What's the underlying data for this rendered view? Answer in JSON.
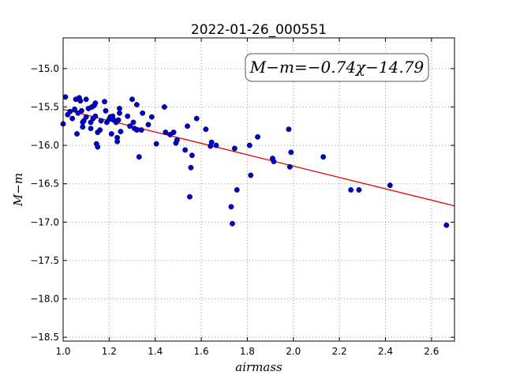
{
  "chart_data": {
    "type": "scatter",
    "title": "2022-01-26_000551",
    "xlabel": "airmass",
    "ylabel": "M−m",
    "xlim": [
      1.0,
      2.7
    ],
    "ylim": [
      -18.55,
      -14.6
    ],
    "xticks": [
      1.0,
      1.2,
      1.4,
      1.6,
      1.8,
      2.0,
      2.2,
      2.4,
      2.6
    ],
    "xtick_labels": [
      "1.0",
      "1.2",
      "1.4",
      "1.6",
      "1.8",
      "2.0",
      "2.2",
      "2.4",
      "2.6"
    ],
    "yticks": [
      -15.0,
      -15.5,
      -16.0,
      -16.5,
      -17.0,
      -17.5,
      -18.0,
      -18.5
    ],
    "ytick_labels": [
      "−15.0",
      "−15.5",
      "−16.0",
      "−16.5",
      "−17.0",
      "−17.5",
      "−18.0",
      "−18.5"
    ],
    "grid": true,
    "annotation": "M−m=−0.74χ−14.79",
    "fit": {
      "slope": -0.74,
      "intercept": -14.79,
      "color": "#e00000"
    },
    "point_color": "#0000cc",
    "points": [
      [
        1.0,
        -15.72
      ],
      [
        1.01,
        -15.37
      ],
      [
        1.02,
        -15.6
      ],
      [
        1.03,
        -15.56
      ],
      [
        1.04,
        -15.65
      ],
      [
        1.05,
        -15.53
      ],
      [
        1.055,
        -15.4
      ],
      [
        1.06,
        -15.85
      ],
      [
        1.065,
        -15.58
      ],
      [
        1.07,
        -15.38
      ],
      [
        1.075,
        -15.42
      ],
      [
        1.08,
        -15.55
      ],
      [
        1.085,
        -15.76
      ],
      [
        1.085,
        -15.7
      ],
      [
        1.09,
        -15.68
      ],
      [
        1.1,
        -15.63
      ],
      [
        1.1,
        -15.4
      ],
      [
        1.11,
        -15.52
      ],
      [
        1.12,
        -15.78
      ],
      [
        1.12,
        -15.7
      ],
      [
        1.125,
        -15.5
      ],
      [
        1.13,
        -15.65
      ],
      [
        1.135,
        -15.48
      ],
      [
        1.14,
        -15.45
      ],
      [
        1.14,
        -15.62
      ],
      [
        1.145,
        -15.98
      ],
      [
        1.15,
        -16.02
      ],
      [
        1.15,
        -15.83
      ],
      [
        1.16,
        -15.8
      ],
      [
        1.165,
        -15.68
      ],
      [
        1.18,
        -15.43
      ],
      [
        1.185,
        -15.55
      ],
      [
        1.19,
        -15.7
      ],
      [
        1.2,
        -15.66
      ],
      [
        1.205,
        -15.63
      ],
      [
        1.21,
        -15.85
      ],
      [
        1.215,
        -15.62
      ],
      [
        1.22,
        -15.67
      ],
      [
        1.23,
        -15.7
      ],
      [
        1.235,
        -15.9
      ],
      [
        1.235,
        -15.95
      ],
      [
        1.24,
        -15.67
      ],
      [
        1.245,
        -15.52
      ],
      [
        1.245,
        -15.58
      ],
      [
        1.25,
        -15.82
      ],
      [
        1.28,
        -15.62
      ],
      [
        1.29,
        -15.75
      ],
      [
        1.3,
        -15.4
      ],
      [
        1.305,
        -15.7
      ],
      [
        1.31,
        -15.78
      ],
      [
        1.32,
        -15.8
      ],
      [
        1.32,
        -15.47
      ],
      [
        1.33,
        -16.15
      ],
      [
        1.34,
        -15.8
      ],
      [
        1.345,
        -15.58
      ],
      [
        1.37,
        -15.73
      ],
      [
        1.385,
        -15.63
      ],
      [
        1.405,
        -15.98
      ],
      [
        1.44,
        -15.5
      ],
      [
        1.445,
        -15.83
      ],
      [
        1.465,
        -15.86
      ],
      [
        1.48,
        -15.83
      ],
      [
        1.49,
        -15.97
      ],
      [
        1.495,
        -15.93
      ],
      [
        1.53,
        -16.06
      ],
      [
        1.54,
        -15.75
      ],
      [
        1.55,
        -16.67
      ],
      [
        1.555,
        -16.29
      ],
      [
        1.56,
        -16.13
      ],
      [
        1.58,
        -15.65
      ],
      [
        1.62,
        -15.79
      ],
      [
        1.64,
        -16.01
      ],
      [
        1.645,
        -15.96
      ],
      [
        1.665,
        -16.0
      ],
      [
        1.73,
        -16.8
      ],
      [
        1.735,
        -17.02
      ],
      [
        1.745,
        -16.04
      ],
      [
        1.755,
        -16.58
      ],
      [
        1.81,
        -16.0
      ],
      [
        1.815,
        -16.39
      ],
      [
        1.845,
        -15.89
      ],
      [
        1.91,
        -16.17
      ],
      [
        1.915,
        -16.21
      ],
      [
        1.98,
        -15.79
      ],
      [
        1.985,
        -16.28
      ],
      [
        1.99,
        -16.09
      ],
      [
        2.13,
        -16.15
      ],
      [
        2.25,
        -16.58
      ],
      [
        2.285,
        -16.58
      ],
      [
        2.42,
        -16.52
      ],
      [
        2.665,
        -17.04
      ]
    ]
  }
}
